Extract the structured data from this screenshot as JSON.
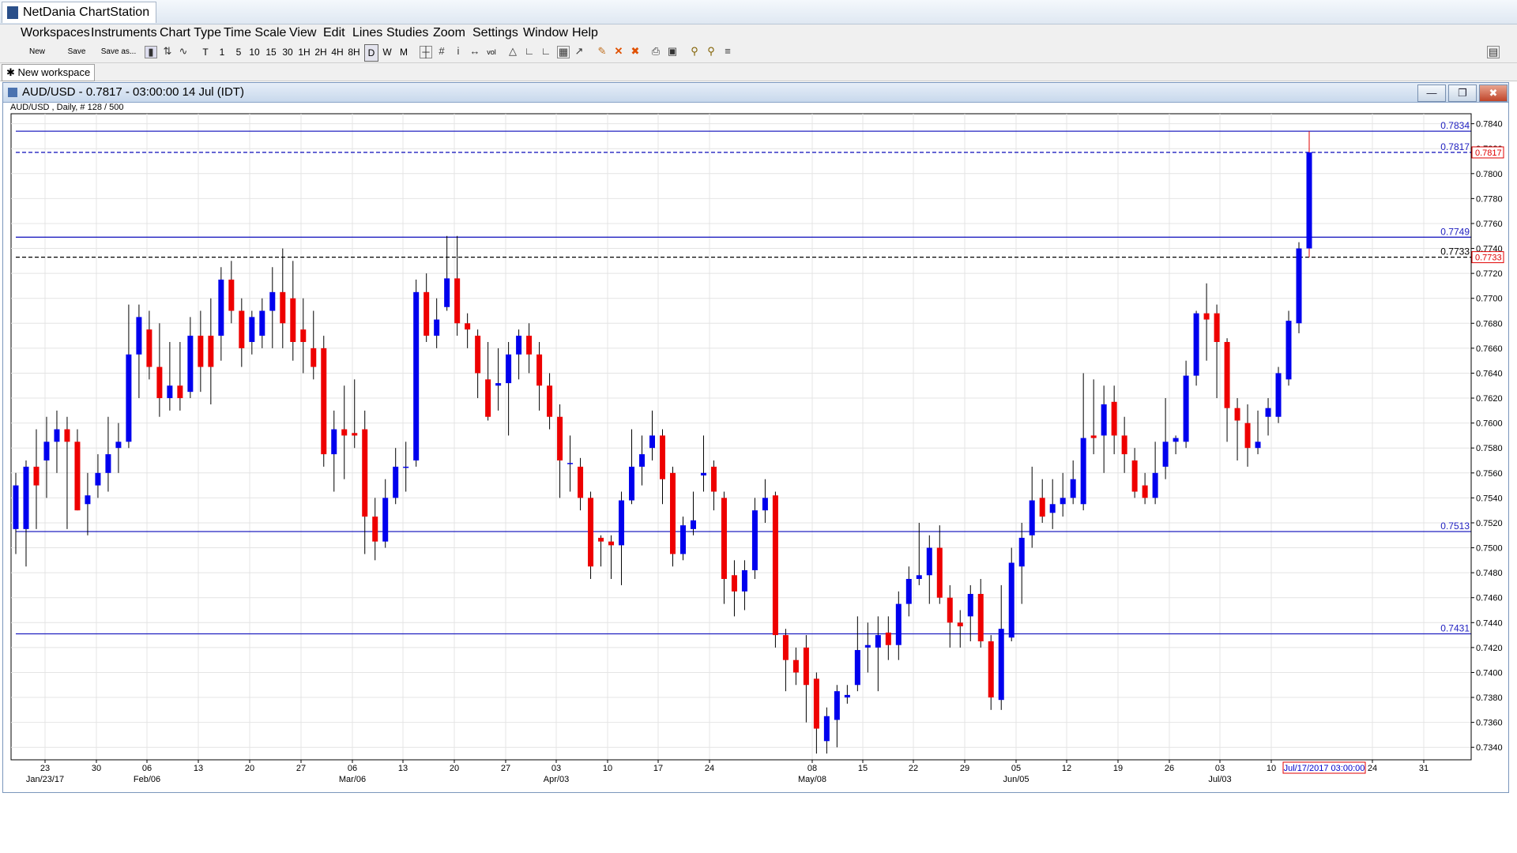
{
  "app": {
    "title": "NetDania ChartStation"
  },
  "menu": [
    "Workspaces",
    "Instruments",
    "Chart Type",
    "Time Scale",
    "View",
    "Edit",
    "Lines",
    "Studies",
    "Zoom",
    "Settings",
    "Window",
    "Help"
  ],
  "toolbar": {
    "new_label": "New",
    "save_label": "Save",
    "save_as_label": "Save as...",
    "timeframes": [
      "T",
      "1",
      "5",
      "10",
      "15",
      "30",
      "1H",
      "2H",
      "4H",
      "8H",
      "D",
      "W",
      "M"
    ],
    "vol_label": "vol",
    "icons": [
      "bar-chart-icon",
      "candle-chart-icon",
      "line-chart-icon",
      "crosshair-icon",
      "grid-icon",
      "info-icon",
      "pan-icon",
      "volume-icon",
      "bell-icon",
      "trendline-icon",
      "fib-icon",
      "measure-icon",
      "cursor-icon",
      "pencil-icon",
      "delete-icon",
      "delete-all-icon",
      "print-icon",
      "zoom-box-icon",
      "zoom-in-icon",
      "zoom-out-icon",
      "fit-icon"
    ]
  },
  "workspace": {
    "tab_label": "New workspace"
  },
  "chart_window": {
    "title": "AUD/USD - 0.7817 - 03:00:00  14 Jul (IDT)",
    "subtitle": "AUD/USD , Daily, # 128 / 500"
  },
  "chart_data": {
    "type": "candlestick",
    "symbol": "AUD/USD",
    "ylim": [
      0.733,
      0.7848
    ],
    "y_ticks": [
      0.734,
      0.736,
      0.738,
      0.74,
      0.742,
      0.744,
      0.746,
      0.748,
      0.75,
      0.752,
      0.754,
      0.756,
      0.758,
      0.76,
      0.762,
      0.764,
      0.766,
      0.768,
      0.77,
      0.772,
      0.774,
      0.776,
      0.778,
      0.78,
      0.782,
      0.784
    ],
    "x_tick_labels": [
      "23",
      "30",
      "06",
      "13",
      "20",
      "27",
      "06",
      "13",
      "20",
      "27",
      "03",
      "10",
      "17",
      "24",
      "08",
      "15",
      "22",
      "29",
      "05",
      "12",
      "19",
      "26",
      "03",
      "10",
      "24",
      "31"
    ],
    "x_month_labels": [
      "Jan/23/17",
      "Feb/06",
      "Mar/06",
      "Apr/03",
      "May/08",
      "Jun/05",
      "Jul/03"
    ],
    "cursor_date_label": "Jul/17/2017 03:00:00",
    "grid": true,
    "horizontal_lines": [
      {
        "value": 0.7834,
        "label": "0.7834",
        "style": "solid",
        "color": "#2020c0"
      },
      {
        "value": 0.7749,
        "label": "0.7749",
        "style": "solid",
        "color": "#2020c0"
      },
      {
        "value": 0.7513,
        "label": "0.7513",
        "style": "solid",
        "color": "#2020c0"
      },
      {
        "value": 0.7431,
        "label": "0.7431",
        "style": "solid",
        "color": "#2020c0"
      },
      {
        "value": 0.7817,
        "label": "0.7817",
        "style": "dashed",
        "color": "#2020c0"
      },
      {
        "value": 0.7733,
        "label": "0.7733",
        "style": "dashed",
        "color": "#000000"
      }
    ],
    "price_badges": [
      {
        "value": 0.7817,
        "label": "0.7817",
        "color": "#e00000"
      },
      {
        "value": 0.7733,
        "label": "0.7733",
        "color": "#e00000"
      }
    ],
    "colors": {
      "up": "#0000ee",
      "down": "#ee0000",
      "hline": "#2020c0"
    },
    "candles": [
      {
        "o": 0.7515,
        "h": 0.756,
        "l": 0.7495,
        "c": 0.755
      },
      {
        "o": 0.7515,
        "h": 0.757,
        "l": 0.7485,
        "c": 0.7565
      },
      {
        "o": 0.7565,
        "h": 0.7595,
        "l": 0.7515,
        "c": 0.755
      },
      {
        "o": 0.757,
        "h": 0.7605,
        "l": 0.754,
        "c": 0.7585
      },
      {
        "o": 0.7585,
        "h": 0.761,
        "l": 0.756,
        "c": 0.7595
      },
      {
        "o": 0.7595,
        "h": 0.7605,
        "l": 0.7515,
        "c": 0.7585
      },
      {
        "o": 0.7585,
        "h": 0.7595,
        "l": 0.753,
        "c": 0.753
      },
      {
        "o": 0.7535,
        "h": 0.756,
        "l": 0.751,
        "c": 0.7542
      },
      {
        "o": 0.755,
        "h": 0.7575,
        "l": 0.754,
        "c": 0.756
      },
      {
        "o": 0.756,
        "h": 0.7605,
        "l": 0.7545,
        "c": 0.7575
      },
      {
        "o": 0.758,
        "h": 0.76,
        "l": 0.756,
        "c": 0.7585
      },
      {
        "o": 0.7585,
        "h": 0.7695,
        "l": 0.758,
        "c": 0.7655
      },
      {
        "o": 0.7655,
        "h": 0.7695,
        "l": 0.762,
        "c": 0.7685
      },
      {
        "o": 0.7675,
        "h": 0.769,
        "l": 0.7635,
        "c": 0.7645
      },
      {
        "o": 0.7645,
        "h": 0.768,
        "l": 0.7605,
        "c": 0.762
      },
      {
        "o": 0.762,
        "h": 0.7665,
        "l": 0.761,
        "c": 0.763
      },
      {
        "o": 0.763,
        "h": 0.7665,
        "l": 0.761,
        "c": 0.762
      },
      {
        "o": 0.7625,
        "h": 0.7685,
        "l": 0.762,
        "c": 0.767
      },
      {
        "o": 0.767,
        "h": 0.769,
        "l": 0.7625,
        "c": 0.7645
      },
      {
        "o": 0.767,
        "h": 0.77,
        "l": 0.7615,
        "c": 0.7645
      },
      {
        "o": 0.767,
        "h": 0.7725,
        "l": 0.765,
        "c": 0.7715
      },
      {
        "o": 0.7715,
        "h": 0.773,
        "l": 0.768,
        "c": 0.769
      },
      {
        "o": 0.769,
        "h": 0.77,
        "l": 0.7645,
        "c": 0.766
      },
      {
        "o": 0.7665,
        "h": 0.769,
        "l": 0.7655,
        "c": 0.7685
      },
      {
        "o": 0.767,
        "h": 0.77,
        "l": 0.766,
        "c": 0.769
      },
      {
        "o": 0.769,
        "h": 0.7725,
        "l": 0.766,
        "c": 0.7705
      },
      {
        "o": 0.7705,
        "h": 0.774,
        "l": 0.766,
        "c": 0.768
      },
      {
        "o": 0.77,
        "h": 0.773,
        "l": 0.765,
        "c": 0.7665
      },
      {
        "o": 0.7675,
        "h": 0.77,
        "l": 0.764,
        "c": 0.7665
      },
      {
        "o": 0.766,
        "h": 0.769,
        "l": 0.7635,
        "c": 0.7645
      },
      {
        "o": 0.766,
        "h": 0.767,
        "l": 0.7565,
        "c": 0.7575
      },
      {
        "o": 0.7575,
        "h": 0.761,
        "l": 0.7545,
        "c": 0.7595
      },
      {
        "o": 0.7595,
        "h": 0.763,
        "l": 0.7555,
        "c": 0.759
      },
      {
        "o": 0.7592,
        "h": 0.7635,
        "l": 0.758,
        "c": 0.759
      },
      {
        "o": 0.7595,
        "h": 0.761,
        "l": 0.7495,
        "c": 0.7525
      },
      {
        "o": 0.7525,
        "h": 0.754,
        "l": 0.749,
        "c": 0.7505
      },
      {
        "o": 0.7505,
        "h": 0.7555,
        "l": 0.75,
        "c": 0.754
      },
      {
        "o": 0.754,
        "h": 0.758,
        "l": 0.7535,
        "c": 0.7565
      },
      {
        "o": 0.7565,
        "h": 0.7585,
        "l": 0.7545,
        "c": 0.7565
      },
      {
        "o": 0.757,
        "h": 0.7715,
        "l": 0.7565,
        "c": 0.7705
      },
      {
        "o": 0.7705,
        "h": 0.772,
        "l": 0.7665,
        "c": 0.767
      },
      {
        "o": 0.767,
        "h": 0.77,
        "l": 0.766,
        "c": 0.7683
      },
      {
        "o": 0.7693,
        "h": 0.775,
        "l": 0.769,
        "c": 0.7716
      },
      {
        "o": 0.7716,
        "h": 0.775,
        "l": 0.767,
        "c": 0.768
      },
      {
        "o": 0.768,
        "h": 0.7688,
        "l": 0.766,
        "c": 0.7675
      },
      {
        "o": 0.767,
        "h": 0.7675,
        "l": 0.762,
        "c": 0.764
      },
      {
        "o": 0.7635,
        "h": 0.7665,
        "l": 0.7602,
        "c": 0.7605
      },
      {
        "o": 0.763,
        "h": 0.766,
        "l": 0.761,
        "c": 0.7632
      },
      {
        "o": 0.7632,
        "h": 0.7665,
        "l": 0.759,
        "c": 0.7655
      },
      {
        "o": 0.7655,
        "h": 0.7675,
        "l": 0.7635,
        "c": 0.767
      },
      {
        "o": 0.767,
        "h": 0.768,
        "l": 0.764,
        "c": 0.7655
      },
      {
        "o": 0.7655,
        "h": 0.7665,
        "l": 0.761,
        "c": 0.763
      },
      {
        "o": 0.763,
        "h": 0.764,
        "l": 0.7595,
        "c": 0.7605
      },
      {
        "o": 0.7605,
        "h": 0.7615,
        "l": 0.754,
        "c": 0.757
      },
      {
        "o": 0.7568,
        "h": 0.759,
        "l": 0.7545,
        "c": 0.7568
      },
      {
        "o": 0.7565,
        "h": 0.7572,
        "l": 0.753,
        "c": 0.754
      },
      {
        "o": 0.754,
        "h": 0.7545,
        "l": 0.7475,
        "c": 0.7485
      },
      {
        "o": 0.7508,
        "h": 0.751,
        "l": 0.7485,
        "c": 0.7505
      },
      {
        "o": 0.7505,
        "h": 0.751,
        "l": 0.7475,
        "c": 0.7502
      },
      {
        "o": 0.7502,
        "h": 0.7545,
        "l": 0.747,
        "c": 0.7538
      },
      {
        "o": 0.7538,
        "h": 0.7595,
        "l": 0.7535,
        "c": 0.7565
      },
      {
        "o": 0.7565,
        "h": 0.759,
        "l": 0.755,
        "c": 0.7575
      },
      {
        "o": 0.758,
        "h": 0.761,
        "l": 0.757,
        "c": 0.759
      },
      {
        "o": 0.759,
        "h": 0.7595,
        "l": 0.7535,
        "c": 0.7555
      },
      {
        "o": 0.756,
        "h": 0.7565,
        "l": 0.7485,
        "c": 0.7495
      },
      {
        "o": 0.7495,
        "h": 0.7525,
        "l": 0.749,
        "c": 0.7518
      },
      {
        "o": 0.7515,
        "h": 0.7545,
        "l": 0.751,
        "c": 0.7522
      },
      {
        "o": 0.7558,
        "h": 0.759,
        "l": 0.7545,
        "c": 0.756
      },
      {
        "o": 0.7565,
        "h": 0.757,
        "l": 0.753,
        "c": 0.7545
      },
      {
        "o": 0.754,
        "h": 0.7545,
        "l": 0.7455,
        "c": 0.7475
      },
      {
        "o": 0.7478,
        "h": 0.749,
        "l": 0.7445,
        "c": 0.7465
      },
      {
        "o": 0.7465,
        "h": 0.749,
        "l": 0.745,
        "c": 0.7482
      },
      {
        "o": 0.7482,
        "h": 0.754,
        "l": 0.7475,
        "c": 0.753
      },
      {
        "o": 0.753,
        "h": 0.7555,
        "l": 0.752,
        "c": 0.754
      },
      {
        "o": 0.7542,
        "h": 0.7545,
        "l": 0.742,
        "c": 0.743
      },
      {
        "o": 0.743,
        "h": 0.7435,
        "l": 0.7385,
        "c": 0.741
      },
      {
        "o": 0.741,
        "h": 0.742,
        "l": 0.739,
        "c": 0.74
      },
      {
        "o": 0.742,
        "h": 0.743,
        "l": 0.736,
        "c": 0.739
      },
      {
        "o": 0.7395,
        "h": 0.74,
        "l": 0.7335,
        "c": 0.7355
      },
      {
        "o": 0.7345,
        "h": 0.7372,
        "l": 0.7335,
        "c": 0.7365
      },
      {
        "o": 0.7362,
        "h": 0.739,
        "l": 0.734,
        "c": 0.7385
      },
      {
        "o": 0.738,
        "h": 0.739,
        "l": 0.7375,
        "c": 0.7382
      },
      {
        "o": 0.739,
        "h": 0.7445,
        "l": 0.7385,
        "c": 0.7418
      },
      {
        "o": 0.742,
        "h": 0.744,
        "l": 0.74,
        "c": 0.7422
      },
      {
        "o": 0.742,
        "h": 0.7445,
        "l": 0.7385,
        "c": 0.743
      },
      {
        "o": 0.7432,
        "h": 0.7445,
        "l": 0.741,
        "c": 0.7422
      },
      {
        "o": 0.7422,
        "h": 0.7465,
        "l": 0.741,
        "c": 0.7455
      },
      {
        "o": 0.7455,
        "h": 0.7485,
        "l": 0.7445,
        "c": 0.7475
      },
      {
        "o": 0.7475,
        "h": 0.752,
        "l": 0.747,
        "c": 0.7478
      },
      {
        "o": 0.7478,
        "h": 0.751,
        "l": 0.7455,
        "c": 0.75
      },
      {
        "o": 0.75,
        "h": 0.7518,
        "l": 0.7455,
        "c": 0.746
      },
      {
        "o": 0.746,
        "h": 0.747,
        "l": 0.742,
        "c": 0.744
      },
      {
        "o": 0.744,
        "h": 0.745,
        "l": 0.742,
        "c": 0.7437
      },
      {
        "o": 0.7445,
        "h": 0.747,
        "l": 0.7425,
        "c": 0.7463
      },
      {
        "o": 0.7463,
        "h": 0.7475,
        "l": 0.742,
        "c": 0.7425
      },
      {
        "o": 0.7425,
        "h": 0.743,
        "l": 0.737,
        "c": 0.738
      },
      {
        "o": 0.7378,
        "h": 0.747,
        "l": 0.737,
        "c": 0.7435
      },
      {
        "o": 0.7428,
        "h": 0.75,
        "l": 0.7425,
        "c": 0.7488
      },
      {
        "o": 0.7485,
        "h": 0.752,
        "l": 0.7455,
        "c": 0.7508
      },
      {
        "o": 0.751,
        "h": 0.7565,
        "l": 0.75,
        "c": 0.7538
      },
      {
        "o": 0.754,
        "h": 0.7555,
        "l": 0.752,
        "c": 0.7525
      },
      {
        "o": 0.7528,
        "h": 0.7555,
        "l": 0.7515,
        "c": 0.7535
      },
      {
        "o": 0.7535,
        "h": 0.756,
        "l": 0.7525,
        "c": 0.754
      },
      {
        "o": 0.754,
        "h": 0.757,
        "l": 0.7535,
        "c": 0.7555
      },
      {
        "o": 0.7535,
        "h": 0.764,
        "l": 0.753,
        "c": 0.7588
      },
      {
        "o": 0.759,
        "h": 0.7635,
        "l": 0.7575,
        "c": 0.7588
      },
      {
        "o": 0.759,
        "h": 0.763,
        "l": 0.756,
        "c": 0.7615
      },
      {
        "o": 0.7617,
        "h": 0.763,
        "l": 0.7575,
        "c": 0.759
      },
      {
        "o": 0.759,
        "h": 0.7605,
        "l": 0.756,
        "c": 0.7575
      },
      {
        "o": 0.757,
        "h": 0.758,
        "l": 0.754,
        "c": 0.7545
      },
      {
        "o": 0.755,
        "h": 0.756,
        "l": 0.7535,
        "c": 0.754
      },
      {
        "o": 0.754,
        "h": 0.7585,
        "l": 0.7535,
        "c": 0.756
      },
      {
        "o": 0.7565,
        "h": 0.762,
        "l": 0.7555,
        "c": 0.7585
      },
      {
        "o": 0.7585,
        "h": 0.759,
        "l": 0.7575,
        "c": 0.7588
      },
      {
        "o": 0.7585,
        "h": 0.765,
        "l": 0.758,
        "c": 0.7638
      },
      {
        "o": 0.7638,
        "h": 0.769,
        "l": 0.763,
        "c": 0.7688
      },
      {
        "o": 0.7688,
        "h": 0.7712,
        "l": 0.765,
        "c": 0.7683
      },
      {
        "o": 0.7688,
        "h": 0.7695,
        "l": 0.762,
        "c": 0.7665
      },
      {
        "o": 0.7665,
        "h": 0.7668,
        "l": 0.7585,
        "c": 0.7612
      },
      {
        "o": 0.7612,
        "h": 0.762,
        "l": 0.757,
        "c": 0.7602
      },
      {
        "o": 0.76,
        "h": 0.7615,
        "l": 0.7565,
        "c": 0.758
      },
      {
        "o": 0.758,
        "h": 0.761,
        "l": 0.7575,
        "c": 0.7585
      },
      {
        "o": 0.7605,
        "h": 0.762,
        "l": 0.759,
        "c": 0.7612
      },
      {
        "o": 0.7605,
        "h": 0.7645,
        "l": 0.76,
        "c": 0.764
      },
      {
        "o": 0.7635,
        "h": 0.769,
        "l": 0.763,
        "c": 0.7682
      },
      {
        "o": 0.768,
        "h": 0.7745,
        "l": 0.7672,
        "c": 0.774
      },
      {
        "o": 0.774,
        "h": 0.7834,
        "l": 0.7733,
        "c": 0.7817
      }
    ]
  }
}
